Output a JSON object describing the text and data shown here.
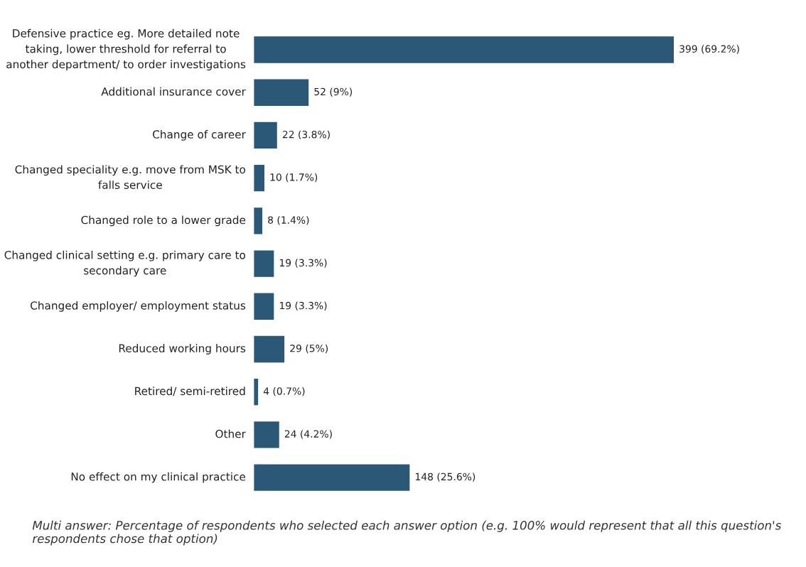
{
  "chart_data": {
    "type": "bar",
    "orientation": "horizontal",
    "categories": [
      "Defensive practice eg. More detailed note taking, lower threshold for referral to another department/ to order investigations",
      "Additional insurance cover",
      "Change of career",
      "Changed speciality e.g. move from MSK to falls service",
      "Changed role to a lower grade",
      "Changed clinical setting e.g. primary care to secondary care",
      "Changed employer/ employment status",
      "Reduced working hours",
      "Retired/ semi-retired",
      "Other",
      "No effect on my clinical practice"
    ],
    "values": [
      399,
      52,
      22,
      10,
      8,
      19,
      19,
      29,
      4,
      24,
      148
    ],
    "value_labels": [
      "399 (69.2%)",
      "52 (9%)",
      "22 (3.8%)",
      "10 (1.7%)",
      "8 (1.4%)",
      "19 (3.3%)",
      "19 (3.3%)",
      "29 (5%)",
      "4 (0.7%)",
      "24 (4.2%)",
      "148 (25.6%)"
    ],
    "color": "#2b5876",
    "annotations": [
      "Multi answer: Percentage of respondents who selected each answer option (e.g. 100% would represent that all this question's respondents chose that option)"
    ]
  }
}
